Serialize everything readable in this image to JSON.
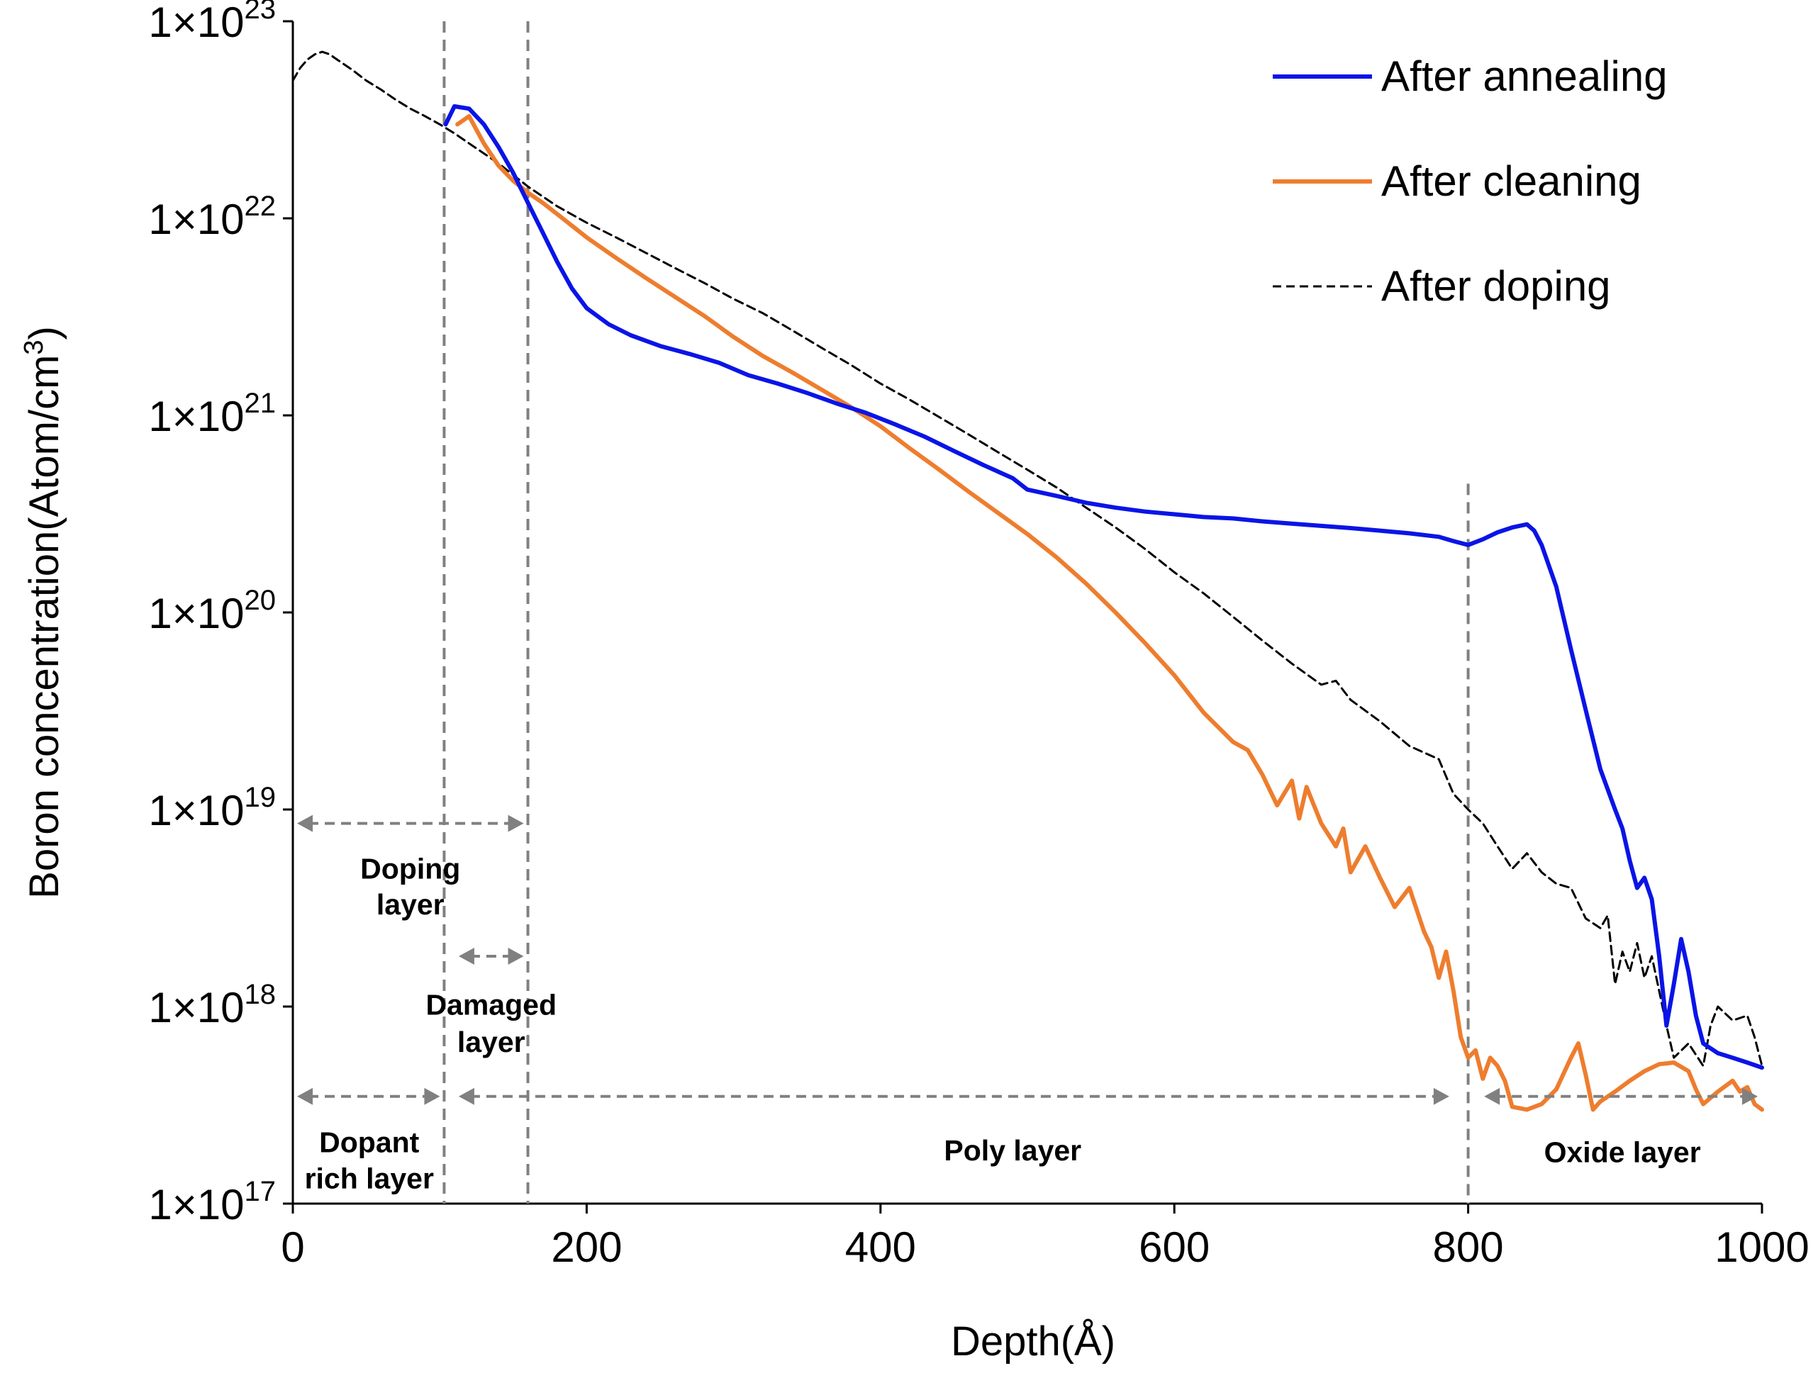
{
  "chart_data": {
    "type": "line",
    "title": "",
    "xlabel": "Depth(Å)",
    "ylabel_main": "Boron concentration(Atom/cm",
    "ylabel_sup": "3",
    "ylabel_end": ")",
    "y_scale": "log",
    "xlim": [
      0,
      1000
    ],
    "ylim": [
      1e+17,
      1e+23
    ],
    "x_ticks": [
      {
        "value": 0,
        "label": "0"
      },
      {
        "value": 200,
        "label": "200"
      },
      {
        "value": 400,
        "label": "400"
      },
      {
        "value": 600,
        "label": "600"
      },
      {
        "value": 800,
        "label": "800"
      },
      {
        "value": 1000,
        "label": "1000"
      }
    ],
    "y_ticks": [
      {
        "value": 1e+17,
        "base": "1×10",
        "exp": "17"
      },
      {
        "value": 1e+18,
        "base": "1×10",
        "exp": "18"
      },
      {
        "value": 1e+19,
        "base": "1×10",
        "exp": "19"
      },
      {
        "value": 1e+20,
        "base": "1×10",
        "exp": "20"
      },
      {
        "value": 1e+21,
        "base": "1×10",
        "exp": "21"
      },
      {
        "value": 1e+22,
        "base": "1×10",
        "exp": "22"
      },
      {
        "value": 1e+23,
        "base": "1×10",
        "exp": "23"
      }
    ],
    "legend_position": "top-right",
    "series": [
      {
        "name": "After annealing",
        "color": "#0a14e6",
        "style": "solid",
        "x": [
          104,
          110,
          120,
          130,
          140,
          150,
          160,
          170,
          180,
          190,
          200,
          215,
          230,
          250,
          270,
          290,
          310,
          330,
          350,
          370,
          390,
          410,
          430,
          450,
          470,
          490,
          500,
          520,
          540,
          560,
          580,
          600,
          620,
          640,
          660,
          680,
          700,
          720,
          740,
          760,
          780,
          790,
          800,
          810,
          820,
          830,
          840,
          845,
          850,
          860,
          870,
          880,
          890,
          900,
          905,
          910,
          915,
          920,
          925,
          930,
          935,
          940,
          945,
          950,
          955,
          960,
          970,
          980,
          990,
          1000
        ],
        "y": [
          3e+22,
          3.7e+22,
          3.6e+22,
          3e+22,
          2.3e+22,
          1.7e+22,
          1.2e+22,
          8.5e+21,
          6e+21,
          4.4e+21,
          3.5e+21,
          2.9e+21,
          2.55e+21,
          2.25e+21,
          2.05e+21,
          1.85e+21,
          1.6e+21,
          1.45e+21,
          1.3e+21,
          1.15e+21,
          1.03e+21,
          9e+20,
          7.8e+20,
          6.6e+20,
          5.6e+20,
          4.8e+20,
          4.2e+20,
          3.9e+20,
          3.6e+20,
          3.4e+20,
          3.25e+20,
          3.15e+20,
          3.05e+20,
          3e+20,
          2.9e+20,
          2.82e+20,
          2.75e+20,
          2.68e+20,
          2.6e+20,
          2.52e+20,
          2.42e+20,
          2.3e+20,
          2.2e+20,
          2.35e+20,
          2.55e+20,
          2.7e+20,
          2.8e+20,
          2.6e+20,
          2.2e+20,
          1.35e+20,
          6.5e+19,
          3.2e+19,
          1.6e+19,
          1e+19,
          8e+18,
          5.5e+18,
          4e+18,
          4.5e+18,
          3.5e+18,
          1.8e+18,
          8e+17,
          1.3e+18,
          2.2e+18,
          1.5e+18,
          9e+17,
          6.5e+17,
          5.8e+17,
          5.5e+17,
          5.2e+17,
          4.9e+17
        ]
      },
      {
        "name": "After cleaning",
        "color": "#ee7d2e",
        "style": "solid",
        "x": [
          112,
          120,
          130,
          140,
          150,
          160,
          170,
          180,
          200,
          220,
          240,
          260,
          280,
          300,
          320,
          340,
          360,
          380,
          400,
          420,
          440,
          460,
          480,
          500,
          520,
          540,
          560,
          580,
          600,
          620,
          640,
          650,
          660,
          670,
          680,
          685,
          690,
          700,
          710,
          715,
          720,
          730,
          740,
          750,
          760,
          770,
          775,
          780,
          785,
          790,
          795,
          800,
          805,
          810,
          815,
          820,
          825,
          830,
          840,
          850,
          860,
          870,
          875,
          880,
          885,
          890,
          900,
          910,
          920,
          930,
          940,
          950,
          955,
          960,
          970,
          980,
          985,
          990,
          995,
          1000
        ],
        "y": [
          3e+22,
          3.3e+22,
          2.4e+22,
          1.85e+22,
          1.55e+22,
          1.35e+22,
          1.2e+22,
          1.05e+22,
          8e+21,
          6.3e+21,
          5e+21,
          4e+21,
          3.2e+21,
          2.5e+21,
          2e+21,
          1.65e+21,
          1.35e+21,
          1.1e+21,
          8.8e+20,
          6.8e+20,
          5.3e+20,
          4.1e+20,
          3.2e+20,
          2.5e+20,
          1.9e+20,
          1.4e+20,
          1e+20,
          7e+19,
          4.8e+19,
          3.1e+19,
          2.2e+19,
          2e+19,
          1.5e+19,
          1.05e+19,
          1.4e+19,
          9e+18,
          1.3e+19,
          8.5e+18,
          6.5e+18,
          8e+18,
          4.8e+18,
          6.5e+18,
          4.5e+18,
          3.2e+18,
          4e+18,
          2.4e+18,
          2e+18,
          1.4e+18,
          1.9e+18,
          1.2e+18,
          7e+17,
          5.5e+17,
          6e+17,
          4.3e+17,
          5.5e+17,
          5e+17,
          4.2e+17,
          3.1e+17,
          3e+17,
          3.2e+17,
          3.8e+17,
          5.5e+17,
          6.5e+17,
          4.5e+17,
          3e+17,
          3.3e+17,
          3.7e+17,
          4.2e+17,
          4.7e+17,
          5.1e+17,
          5.2e+17,
          4.7e+17,
          3.8e+17,
          3.2e+17,
          3.7e+17,
          4.2e+17,
          3.7e+17,
          3.9e+17,
          3.2e+17,
          3e+17
        ]
      },
      {
        "name": "After doping",
        "color": "#000000",
        "style": "dashed",
        "x": [
          0,
          5,
          10,
          15,
          20,
          25,
          30,
          40,
          50,
          60,
          70,
          80,
          90,
          100,
          110,
          120,
          140,
          160,
          180,
          200,
          220,
          240,
          260,
          280,
          300,
          320,
          340,
          360,
          380,
          400,
          420,
          440,
          460,
          480,
          500,
          520,
          540,
          560,
          580,
          600,
          620,
          640,
          660,
          680,
          700,
          710,
          720,
          740,
          760,
          780,
          790,
          800,
          810,
          820,
          830,
          840,
          850,
          860,
          870,
          880,
          890,
          895,
          900,
          905,
          910,
          915,
          920,
          925,
          930,
          935,
          940,
          950,
          960,
          965,
          970,
          980,
          990,
          995,
          1000
        ],
        "y": [
          5e+22,
          5.8e+22,
          6.4e+22,
          6.8e+22,
          7e+22,
          6.8e+22,
          6.4e+22,
          5.7e+22,
          5e+22,
          4.5e+22,
          4e+22,
          3.6e+22,
          3.3e+22,
          3e+22,
          2.7e+22,
          2.4e+22,
          1.9e+22,
          1.45e+22,
          1.15e+22,
          9.5e+21,
          8e+21,
          6.7e+21,
          5.6e+21,
          4.7e+21,
          3.9e+21,
          3.3e+21,
          2.7e+21,
          2.2e+21,
          1.8e+21,
          1.45e+21,
          1.2e+21,
          9.8e+20,
          8e+20,
          6.5e+20,
          5.3e+20,
          4.3e+20,
          3.4e+20,
          2.7e+20,
          2.1e+20,
          1.6e+20,
          1.25e+20,
          9.5e+19,
          7.2e+19,
          5.5e+19,
          4.3e+19,
          4.5e+19,
          3.6e+19,
          2.8e+19,
          2.1e+19,
          1.8e+19,
          1.2e+19,
          1e+19,
          8.5e+18,
          6.5e+18,
          5e+18,
          6e+18,
          4.8e+18,
          4.2e+18,
          4e+18,
          2.8e+18,
          2.5e+18,
          2.9e+18,
          1.3e+18,
          1.9e+18,
          1.5e+18,
          2.1e+18,
          1.4e+18,
          1.8e+18,
          1.2e+18,
          8e+17,
          5.5e+17,
          6.5e+17,
          5e+17,
          8e+17,
          1e+18,
          8.5e+17,
          9e+17,
          7e+17,
          5e+17
        ]
      }
    ],
    "boundaries": [
      {
        "x": 103,
        "label": "doping/damaged boundary"
      },
      {
        "x": 160,
        "label": "damaged/poly boundary"
      },
      {
        "x": 800,
        "label": "poly/oxide boundary"
      }
    ],
    "regions": [
      {
        "name": "doping-layer",
        "lines": [
          "Doping",
          "layer"
        ],
        "x_start": 0,
        "x_end": 160,
        "arrow_y": 8.5e+18,
        "label_x": 80,
        "label_y": [
          5e+18,
          3.3e+18
        ]
      },
      {
        "name": "damaged-layer",
        "lines": [
          "Damaged",
          "layer"
        ],
        "x_start": 110,
        "x_end": 160,
        "arrow_y": 1.8e+18,
        "label_x": 135,
        "label_y": [
          1.02e+18,
          6.6e+17
        ]
      },
      {
        "name": "dopant-rich-layer",
        "lines": [
          "Dopant",
          "rich layer"
        ],
        "x_start": 0,
        "x_end": 103,
        "arrow_y": 3.5e+17,
        "label_x": 52,
        "label_y": [
          2.05e+17,
          1.34e+17
        ]
      },
      {
        "name": "poly-layer",
        "lines": [
          "Poly layer"
        ],
        "x_start": 110,
        "x_end": 790,
        "arrow_y": 3.5e+17,
        "label_x": 490,
        "label_y": [
          1.86e+17
        ]
      },
      {
        "name": "oxide-layer",
        "lines": [
          "Oxide layer"
        ],
        "x_start": 808,
        "x_end": 1000,
        "arrow_y": 3.5e+17,
        "label_x": 905,
        "label_y": [
          1.82e+17
        ]
      }
    ]
  }
}
